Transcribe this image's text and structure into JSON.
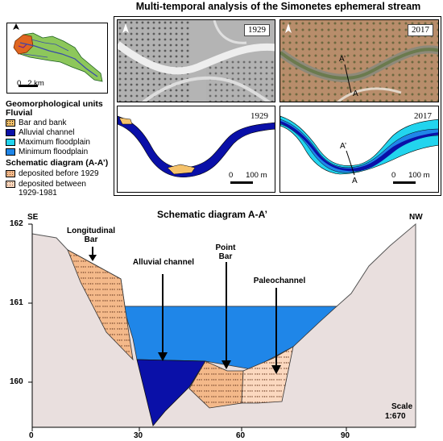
{
  "title": "Multi-temporal analysis of the Simonetes ephemeral stream",
  "map_scale_label": "0   2 km",
  "photos": {
    "left_year": "1929",
    "right_year": "2017",
    "right_label_a_prime": "A’",
    "right_label_a": "A"
  },
  "maps": {
    "left_year": "1929",
    "right_year": "2017",
    "left_scale": "0      100 m",
    "right_scale": "0      100 m",
    "right_label_a_prime": "A’",
    "right_label_a": "A"
  },
  "legend": {
    "heading": "Geomorphological units",
    "subheading": "Fluvial",
    "items": [
      {
        "label": "Bar and bank",
        "color": "#f5c26b"
      },
      {
        "label": "Alluvial channel",
        "color": "#0a10a8"
      },
      {
        "label": "Maximum floodplain",
        "color": "#22d4ee"
      },
      {
        "label": "Minimum floodplain",
        "color": "#1f86e8"
      }
    ],
    "schematic_heading": "Schematic diagram (A-A’)",
    "schematic_items": [
      {
        "label": "deposited before 1929",
        "color": "#f4b98a"
      },
      {
        "label": "deposited between 1929-1981",
        "color": "#fbd8bf"
      }
    ]
  },
  "diagram": {
    "title": "Schematic diagram A-A’",
    "left_dir": "SE",
    "right_dir": "NW",
    "labels": {
      "longitudinal_bar": "Longitudinal Bar",
      "alluvial_channel": "Alluvial channel",
      "point_bar": "Point Bar",
      "paleochannel": "Paleochannel"
    },
    "y_ticks": [
      "162",
      "161",
      "160"
    ],
    "x_ticks": [
      "0",
      "30",
      "60",
      "90"
    ],
    "scale_title": "Scale",
    "scale_value": "1:670",
    "colors": {
      "terrain": "#e9dfde",
      "water": "#1f86e8",
      "channel": "#0a10a8",
      "bar_old": "#f4b98a",
      "bar_new": "#fbd8bf"
    }
  }
}
